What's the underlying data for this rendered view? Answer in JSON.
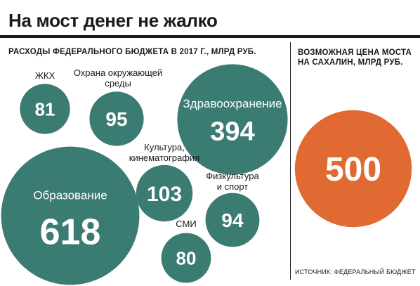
{
  "title": "На мост денег не жалко",
  "left_caption": "РАСХОДЫ ФЕДЕРАЛЬНОГО БЮДЖЕТА В 2017 Г., МЛРД РУБ.",
  "right_caption": "ВОЗМОЖНАЯ ЦЕНА МОСТА НА САХАЛИН, МЛРД РУБ.",
  "source": "ИСТОЧНИК: ФЕДЕРАЛЬНЫЙ БЮДЖЕТ",
  "colors": {
    "budget": "#3a7b72",
    "bridge": "#e06a32",
    "text": "#1a1a1a",
    "value_text": "#ffffff"
  },
  "chart_data": {
    "type": "bubble",
    "unit": "МЛРД РУБ.",
    "series": [
      {
        "items": [
          {
            "label": "ЖКХ",
            "value": 81
          },
          {
            "label": "Охрана окружающей среды",
            "value": 95
          },
          {
            "label": "Здравоохранение",
            "value": 394
          },
          {
            "label": "Культура, кинематография",
            "value": 103
          },
          {
            "label": "Образование",
            "value": 618
          },
          {
            "label": "Физкультура и спорт",
            "value": 94
          },
          {
            "label": "СМИ",
            "value": 80
          }
        ]
      },
      {
        "items": [
          {
            "label": "",
            "value": 500
          }
        ]
      }
    ]
  }
}
